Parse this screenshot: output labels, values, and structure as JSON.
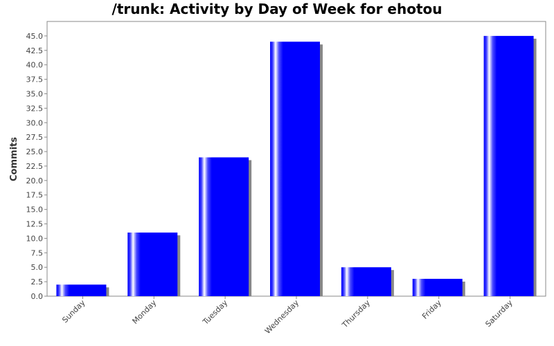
{
  "chart_data": {
    "type": "bar",
    "title": "/trunk: Activity by Day of Week for ehotou",
    "xlabel": "",
    "ylabel": "Commits",
    "categories": [
      "Sunday",
      "Monday",
      "Tuesday",
      "Wednesday",
      "Thursday",
      "Friday",
      "Saturday"
    ],
    "values": [
      2,
      11,
      24,
      44,
      5,
      3,
      45
    ],
    "ylim": [
      0,
      47.5
    ],
    "yticks": [
      "0.0",
      "2.5",
      "5.0",
      "7.5",
      "10.0",
      "12.5",
      "15.0",
      "17.5",
      "20.0",
      "22.5",
      "25.0",
      "27.5",
      "30.0",
      "32.5",
      "35.0",
      "37.5",
      "40.0",
      "42.5",
      "45.0"
    ],
    "grid": false,
    "legend": "none",
    "colors": {
      "bar": "#0000ff",
      "bar_highlight": "#ffffff",
      "shadow": "#888888",
      "axis": "#888888"
    }
  }
}
